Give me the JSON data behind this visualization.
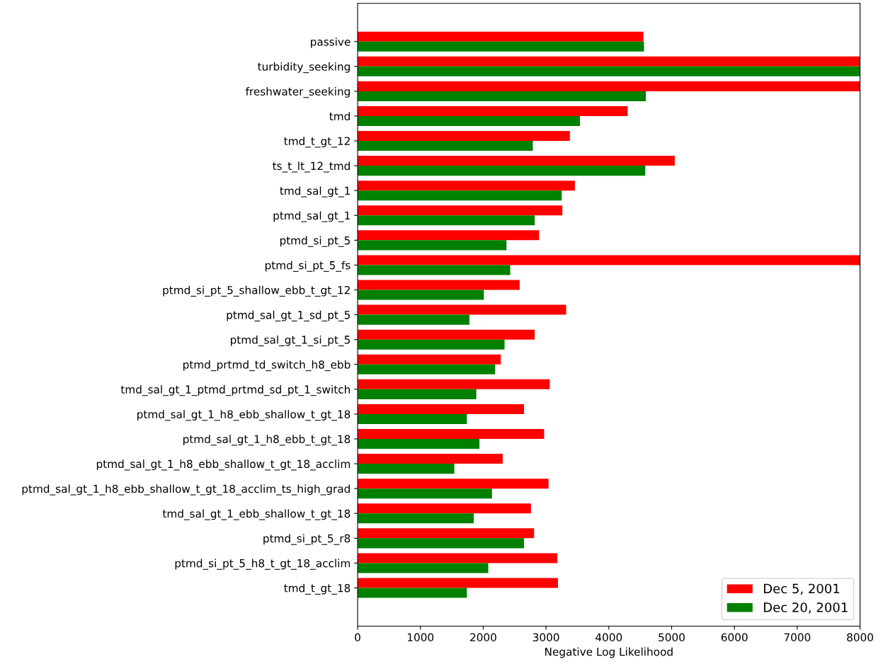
{
  "chart_data": {
    "type": "bar",
    "orientation": "horizontal",
    "xlabel": "Negative Log Likelihood",
    "categories": [
      "passive",
      "turbidity_seeking",
      "freshwater_seeking",
      "tmd",
      "tmd_t_gt_12",
      "ts_t_lt_12_tmd",
      "tmd_sal_gt_1",
      "ptmd_sal_gt_1",
      "ptmd_si_pt_5",
      "ptmd_si_pt_5_fs",
      "ptmd_si_pt_5_shallow_ebb_t_gt_12",
      "ptmd_sal_gt_1_sd_pt_5",
      "ptmd_sal_gt_1_si_pt_5",
      "ptmd_prtmd_td_switch_h8_ebb",
      "tmd_sal_gt_1_ptmd_prtmd_sd_pt_1_switch",
      "ptmd_sal_gt_1_h8_ebb_shallow_t_gt_18",
      "ptmd_sal_gt_1_h8_ebb_t_gt_18",
      "ptmd_sal_gt_1_h8_ebb_shallow_t_gt_18_acclim",
      "ptmd_sal_gt_1_h8_ebb_shallow_t_gt_18_acclim_ts_high_grad",
      "tmd_sal_gt_1_ebb_shallow_t_gt_18",
      "ptmd_si_pt_5_r8",
      "ptmd_si_pt_5_h8_t_gt_18_acclim",
      "tmd_t_gt_18"
    ],
    "series": [
      {
        "name": "Dec 5, 2001",
        "color": "#ff0000",
        "values": [
          4550,
          8000,
          8000,
          4300,
          3380,
          5050,
          3460,
          3260,
          2890,
          8000,
          2580,
          3320,
          2820,
          2280,
          3060,
          2650,
          2970,
          2310,
          3040,
          2760,
          2810,
          3180,
          3190
        ]
      },
      {
        "name": "Dec 20, 2001",
        "color": "#008000",
        "values": [
          4560,
          8000,
          4590,
          3540,
          2790,
          4580,
          3250,
          2820,
          2370,
          2430,
          2010,
          1780,
          2340,
          2190,
          1890,
          1740,
          1940,
          1540,
          2140,
          1850,
          2650,
          2080,
          1740
        ]
      }
    ],
    "xlim": [
      0,
      8000
    ],
    "xticks": [
      0,
      1000,
      2000,
      3000,
      4000,
      5000,
      6000,
      7000,
      8000
    ],
    "legend": "lower right"
  }
}
